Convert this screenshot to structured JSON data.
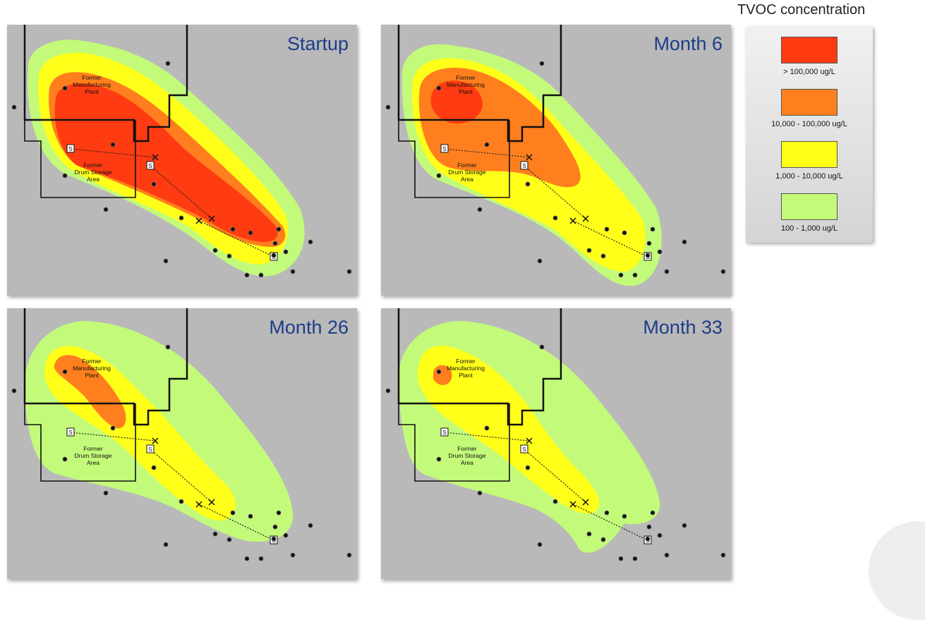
{
  "legend": {
    "title": "TVOC concentration",
    "items": [
      {
        "label": "> 100,000 ug/L",
        "color": "#ff3b12"
      },
      {
        "label": "10,000 - 100,000 ug/L",
        "color": "#ff7f1e"
      },
      {
        "label": "1,000 - 10,000 ug/L",
        "color": "#ffff1a"
      },
      {
        "label": "100 - 1,000 ug/L",
        "color": "#c3fa7a"
      }
    ]
  },
  "map_labels": {
    "plant_line1": "Former",
    "plant_line2": "Manufacturing",
    "plant_line3": "Plant",
    "drum_line1": "Former",
    "drum_line2": "Drum Storage",
    "drum_line3": "Area",
    "well_symbol": "S"
  },
  "panels": [
    {
      "title": "Startup",
      "plume_levels": [
        "100 - 1,000 ug/L",
        "1,000 - 10,000 ug/L",
        "10,000 - 100,000 ug/L",
        "> 100,000 ug/L"
      ]
    },
    {
      "title": "Month 6",
      "plume_levels": [
        "100 - 1,000 ug/L",
        "1,000 - 10,000 ug/L",
        "10,000 - 100,000 ug/L",
        "> 100,000 ug/L"
      ]
    },
    {
      "title": "Month 26",
      "plume_levels": [
        "100 - 1,000 ug/L",
        "1,000 - 10,000 ug/L",
        "10,000 - 100,000 ug/L"
      ]
    },
    {
      "title": "Month 33",
      "plume_levels": [
        "100 - 1,000 ug/L",
        "1,000 - 10,000 ug/L",
        "10,000 - 100,000 ug/L"
      ]
    }
  ]
}
